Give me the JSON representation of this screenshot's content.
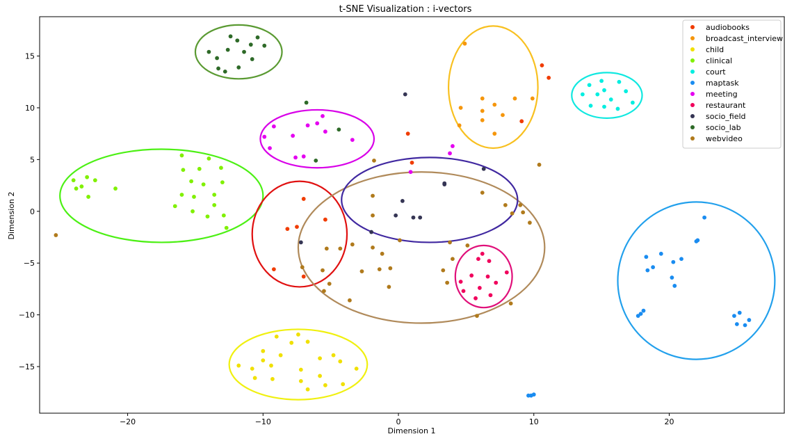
{
  "chart_data": {
    "type": "scatter",
    "title": "t-SNE Visualization : i-vectors",
    "xlabel": "Dimension 1",
    "ylabel": "Dimension 2",
    "xlim": [
      -26.5,
      28.5
    ],
    "ylim": [
      -19.5,
      18.8
    ],
    "xticks": [
      -20,
      -10,
      0,
      10,
      20
    ],
    "yticks": [
      -15,
      -10,
      -5,
      0,
      5,
      10,
      15
    ],
    "xtick_labels": [
      "−20",
      "−10",
      "0",
      "10",
      "20"
    ],
    "ytick_labels": [
      "−15",
      "−10",
      "−5",
      "0",
      "5",
      "10",
      "15"
    ],
    "grid": false,
    "legend_position": "top-right",
    "series": [
      {
        "name": "audiobooks",
        "color": "#f03c00",
        "points": [
          [
            -7.0,
            1.2
          ],
          [
            -5.4,
            -0.8
          ],
          [
            -8.2,
            -1.7
          ],
          [
            -7.5,
            -1.5
          ],
          [
            -9.2,
            -5.6
          ],
          [
            -7.0,
            -6.3
          ],
          [
            0.7,
            7.5
          ],
          [
            1.0,
            4.7
          ],
          [
            10.6,
            14.1
          ],
          [
            11.1,
            12.9
          ],
          [
            9.1,
            8.7
          ]
        ]
      },
      {
        "name": "broadcast_interview",
        "color": "#f5960c",
        "points": [
          [
            4.9,
            16.2
          ],
          [
            6.2,
            10.9
          ],
          [
            8.6,
            10.9
          ],
          [
            9.9,
            10.9
          ],
          [
            4.6,
            10.0
          ],
          [
            6.2,
            9.7
          ],
          [
            7.1,
            10.3
          ],
          [
            7.7,
            9.3
          ],
          [
            4.5,
            8.3
          ],
          [
            6.2,
            8.8
          ],
          [
            7.1,
            7.5
          ]
        ]
      },
      {
        "name": "child",
        "color": "#f0e000",
        "points": [
          [
            -9.0,
            -12.1
          ],
          [
            -7.4,
            -11.9
          ],
          [
            -6.7,
            -12.6
          ],
          [
            -7.9,
            -12.7
          ],
          [
            -10.0,
            -13.5
          ],
          [
            -8.7,
            -13.9
          ],
          [
            -5.8,
            -14.2
          ],
          [
            -4.8,
            -13.9
          ],
          [
            -4.3,
            -14.5
          ],
          [
            -3.1,
            -15.2
          ],
          [
            -10.0,
            -14.4
          ],
          [
            -11.8,
            -14.9
          ],
          [
            -9.4,
            -14.9
          ],
          [
            -10.8,
            -15.2
          ],
          [
            -7.2,
            -15.3
          ],
          [
            -5.8,
            -15.9
          ],
          [
            -10.6,
            -16.1
          ],
          [
            -9.3,
            -16.2
          ],
          [
            -7.2,
            -16.4
          ],
          [
            -5.4,
            -16.8
          ],
          [
            -4.1,
            -16.7
          ],
          [
            -6.7,
            -17.2
          ]
        ]
      },
      {
        "name": "clinical",
        "color": "#80f000",
        "points": [
          [
            -16.0,
            5.4
          ],
          [
            -14.0,
            5.1
          ],
          [
            -15.9,
            4.0
          ],
          [
            -14.7,
            4.1
          ],
          [
            -13.1,
            4.2
          ],
          [
            -23.0,
            3.3
          ],
          [
            -24.0,
            3.0
          ],
          [
            -22.4,
            3.0
          ],
          [
            -15.3,
            2.9
          ],
          [
            -14.4,
            2.6
          ],
          [
            -13.0,
            2.8
          ],
          [
            -23.4,
            2.4
          ],
          [
            -23.8,
            2.2
          ],
          [
            -20.9,
            2.2
          ],
          [
            -16.0,
            1.6
          ],
          [
            -15.1,
            1.4
          ],
          [
            -13.6,
            1.6
          ],
          [
            -22.9,
            1.4
          ],
          [
            -16.5,
            0.5
          ],
          [
            -13.6,
            0.6
          ],
          [
            -15.2,
            0.0
          ],
          [
            -14.1,
            -0.5
          ],
          [
            -12.9,
            -0.4
          ],
          [
            -12.7,
            -1.6
          ]
        ]
      },
      {
        "name": "court",
        "color": "#00eee0",
        "points": [
          [
            14.1,
            12.2
          ],
          [
            15.0,
            12.6
          ],
          [
            16.3,
            12.5
          ],
          [
            15.2,
            11.7
          ],
          [
            16.8,
            11.6
          ],
          [
            13.6,
            11.3
          ],
          [
            14.7,
            11.3
          ],
          [
            15.7,
            10.8
          ],
          [
            17.3,
            10.5
          ],
          [
            14.2,
            10.2
          ],
          [
            15.2,
            10.1
          ],
          [
            16.2,
            9.9
          ]
        ]
      },
      {
        "name": "maptask",
        "color": "#1a8cf0",
        "points": [
          [
            22.6,
            -0.6
          ],
          [
            22.1,
            -2.8
          ],
          [
            22.0,
            -2.9
          ],
          [
            19.4,
            -4.1
          ],
          [
            20.9,
            -4.6
          ],
          [
            18.3,
            -4.4
          ],
          [
            20.3,
            -4.9
          ],
          [
            18.8,
            -5.4
          ],
          [
            18.4,
            -5.7
          ],
          [
            20.2,
            -6.4
          ],
          [
            20.4,
            -7.2
          ],
          [
            18.1,
            -9.6
          ],
          [
            17.9,
            -9.9
          ],
          [
            17.7,
            -10.1
          ],
          [
            25.2,
            -9.8
          ],
          [
            24.8,
            -10.1
          ],
          [
            25.9,
            -10.5
          ],
          [
            25.0,
            -10.9
          ],
          [
            25.6,
            -11.0
          ],
          [
            9.6,
            -17.8
          ],
          [
            9.8,
            -17.8
          ],
          [
            10.0,
            -17.7
          ]
        ]
      },
      {
        "name": "meeting",
        "color": "#e400f0",
        "points": [
          [
            -5.6,
            9.2
          ],
          [
            -6.0,
            8.5
          ],
          [
            -6.7,
            8.3
          ],
          [
            -9.2,
            8.2
          ],
          [
            -5.4,
            7.7
          ],
          [
            -9.9,
            7.2
          ],
          [
            -7.8,
            7.3
          ],
          [
            -3.4,
            6.9
          ],
          [
            -9.5,
            6.1
          ],
          [
            -7.6,
            5.2
          ],
          [
            -7.0,
            5.3
          ],
          [
            4.0,
            6.3
          ],
          [
            3.8,
            5.6
          ],
          [
            0.9,
            3.8
          ]
        ]
      },
      {
        "name": "restaurant",
        "color": "#f0005c",
        "points": [
          [
            6.2,
            -4.1
          ],
          [
            5.9,
            -4.6
          ],
          [
            6.7,
            -4.8
          ],
          [
            8.0,
            -5.9
          ],
          [
            5.4,
            -6.2
          ],
          [
            6.6,
            -6.3
          ],
          [
            4.6,
            -6.8
          ],
          [
            7.2,
            -6.9
          ],
          [
            6.0,
            -7.4
          ],
          [
            4.8,
            -7.7
          ],
          [
            6.8,
            -8.1
          ],
          [
            5.7,
            -8.4
          ]
        ]
      },
      {
        "name": "socio_field",
        "color": "#353554",
        "points": [
          [
            0.5,
            11.3
          ],
          [
            6.3,
            4.1
          ],
          [
            3.4,
            2.7
          ],
          [
            3.4,
            2.6
          ],
          [
            0.3,
            1.0
          ],
          [
            -0.2,
            -0.4
          ],
          [
            1.1,
            -0.6
          ],
          [
            1.6,
            -0.6
          ],
          [
            -2.0,
            -2.0
          ],
          [
            -7.2,
            -3.0
          ]
        ]
      },
      {
        "name": "socio_lab",
        "color": "#2e6a28",
        "points": [
          [
            -12.4,
            16.9
          ],
          [
            -10.4,
            16.8
          ],
          [
            -11.9,
            16.5
          ],
          [
            -10.9,
            16.1
          ],
          [
            -9.9,
            16.0
          ],
          [
            -12.6,
            15.6
          ],
          [
            -14.0,
            15.4
          ],
          [
            -11.4,
            15.4
          ],
          [
            -13.4,
            14.8
          ],
          [
            -10.8,
            14.7
          ],
          [
            -13.3,
            13.8
          ],
          [
            -12.8,
            13.5
          ],
          [
            -11.8,
            13.9
          ],
          [
            -6.8,
            10.5
          ],
          [
            -4.4,
            7.9
          ],
          [
            -6.1,
            4.9
          ]
        ]
      },
      {
        "name": "webvideo",
        "color": "#b07a1c",
        "points": [
          [
            10.4,
            4.5
          ],
          [
            -1.8,
            4.9
          ],
          [
            -1.9,
            1.5
          ],
          [
            6.2,
            1.8
          ],
          [
            7.9,
            0.6
          ],
          [
            9.0,
            0.6
          ],
          [
            8.4,
            -0.2
          ],
          [
            9.2,
            -0.1
          ],
          [
            9.7,
            -1.1
          ],
          [
            -25.3,
            -2.3
          ],
          [
            -1.9,
            -0.4
          ],
          [
            -3.4,
            -3.2
          ],
          [
            -1.9,
            -3.5
          ],
          [
            -5.3,
            -3.6
          ],
          [
            -4.3,
            -3.6
          ],
          [
            -1.2,
            -4.1
          ],
          [
            3.8,
            -3.0
          ],
          [
            0.1,
            -2.8
          ],
          [
            -7.1,
            -5.4
          ],
          [
            -5.6,
            -5.7
          ],
          [
            -2.7,
            -5.8
          ],
          [
            -1.4,
            -5.6
          ],
          [
            -0.6,
            -5.5
          ],
          [
            3.3,
            -5.7
          ],
          [
            4.0,
            -4.6
          ],
          [
            5.1,
            -3.3
          ],
          [
            -5.1,
            -7.0
          ],
          [
            -5.5,
            -7.7
          ],
          [
            -0.7,
            -7.3
          ],
          [
            3.6,
            -6.9
          ],
          [
            -3.6,
            -8.6
          ],
          [
            8.3,
            -8.9
          ],
          [
            5.8,
            -10.1
          ]
        ]
      }
    ],
    "ellipses": [
      {
        "series": "socio_lab",
        "color": "#5a9a32",
        "cx": -11.8,
        "cy": 15.4,
        "rx": 3.2,
        "ry": 2.6
      },
      {
        "series": "meeting",
        "color": "#d800e8",
        "cx": -6.0,
        "cy": 7.0,
        "rx": 4.2,
        "ry": 2.8
      },
      {
        "series": "clinical",
        "color": "#4cf014",
        "cx": -17.5,
        "cy": 1.5,
        "rx": 7.5,
        "ry": 4.5
      },
      {
        "series": "audiobooks",
        "color": "#e01010",
        "cx": -7.3,
        "cy": -2.2,
        "rx": 3.5,
        "ry": 5.1
      },
      {
        "series": "webvideo",
        "color": "#b08a5a",
        "cx": 1.7,
        "cy": -3.5,
        "rx": 9.1,
        "ry": 7.3
      },
      {
        "series": "socio_field",
        "color": "#4028a0",
        "cx": 2.3,
        "cy": 1.1,
        "rx": 6.5,
        "ry": 4.1
      },
      {
        "series": "broadcast_interview",
        "color": "#f8c020",
        "cx": 7.0,
        "cy": 12.0,
        "rx": 3.3,
        "ry": 5.9
      },
      {
        "series": "court",
        "color": "#10e8e0",
        "cx": 15.4,
        "cy": 11.2,
        "rx": 2.6,
        "ry": 2.2
      },
      {
        "series": "maptask",
        "color": "#22a0ec",
        "cx": 22.0,
        "cy": -6.7,
        "rx": 5.8,
        "ry": 7.6
      },
      {
        "series": "restaurant",
        "color": "#e0107a",
        "cx": 6.3,
        "cy": -6.3,
        "rx": 2.1,
        "ry": 3.0
      },
      {
        "series": "child",
        "color": "#f0f010",
        "cx": -7.4,
        "cy": -14.8,
        "rx": 5.1,
        "ry": 3.4
      }
    ]
  }
}
